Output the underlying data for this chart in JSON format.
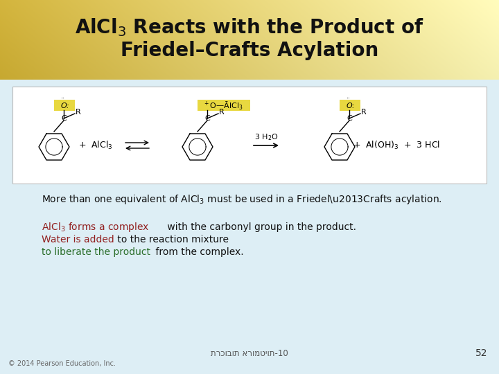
{
  "title_line1": "AlCl$_3$ Reacts with the Product of",
  "title_line2": "Friedel–Crafts Acylation",
  "bg_body": "#e8f4f8",
  "title_bg_left": "#c8a830",
  "title_bg_right": "#f0e890",
  "reaction_box_bg": "#ffffff",
  "highlight_yellow": "#e8d840",
  "text_main": "#111111",
  "text_red": "#922020",
  "text_green": "#2a6e2a",
  "footer_text": "תרכובות ארומטיות-10",
  "page_num": "52",
  "copyright": "© 2014 Pearson Education, Inc."
}
